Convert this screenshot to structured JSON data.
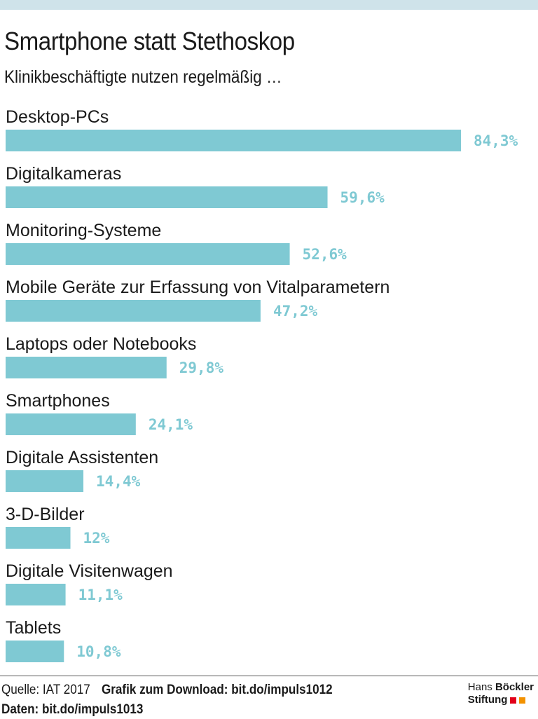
{
  "title": "Smartphone statt Stethoskop",
  "subtitle": "Klinikbeschäftigte nutzen regelmäßig …",
  "chart_data": {
    "type": "bar",
    "orientation": "horizontal",
    "title": "Smartphone statt Stethoskop",
    "subtitle": "Klinikbeschäftigte nutzen regelmäßig …",
    "unit": "%",
    "categories": [
      "Desktop-PCs",
      "Digitalkameras",
      "Monitoring-Systeme",
      "Mobile Geräte zur Erfassung von Vitalparametern",
      "Laptops oder Notebooks",
      "Smartphones",
      "Digitale Assistenten",
      "3-D-Bilder",
      "Digitale Visitenwagen",
      "Tablets"
    ],
    "values": [
      84.3,
      59.6,
      52.6,
      47.2,
      29.8,
      24.1,
      14.4,
      12,
      11.1,
      10.8
    ],
    "value_labels": [
      "84,3%",
      "59,6%",
      "52,6%",
      "47,2%",
      "29,8%",
      "24,1%",
      "14,4%",
      "12%",
      "11,1%",
      "10,8%"
    ],
    "bar_color": "#7fc9d3",
    "label_color": "#7fc9d3"
  },
  "footer": {
    "source": "Quelle: IAT 2017",
    "download": "Grafik zum Download: bit.do/impuls1012",
    "data_link": "Daten: bit.do/impuls1013"
  },
  "logo": {
    "line1_regular": "Hans",
    "line1_bold": "Böckler",
    "line2": "Stiftung",
    "colors": [
      "#e2001a",
      "#f39200"
    ]
  },
  "colors": {
    "top_band": "#cfe3ea"
  }
}
